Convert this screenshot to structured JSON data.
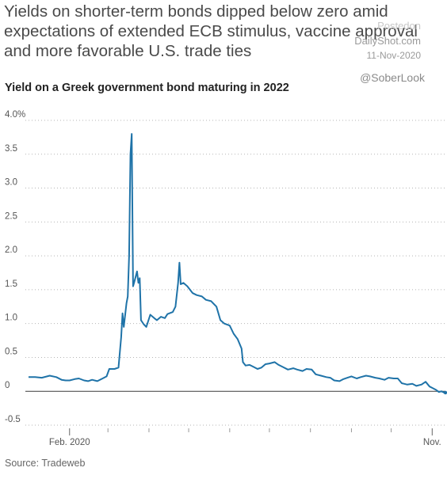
{
  "headline": "Yields on shorter-term bonds dipped below zero amid expectations of extended ECB stimulus, vaccine approval and more favorable U.S. trade ties",
  "watermark": {
    "source": "Postedon",
    "site": "DailyShot.com",
    "date": "11-Nov-2020",
    "handle": "@SoberLook"
  },
  "footer": {
    "source": "Source: Tradeweb"
  },
  "chart_data": {
    "type": "line",
    "title": "Yield on a Greek government bond maturing in 2022",
    "xlabel": "",
    "ylabel": "",
    "x_range": [
      "2020-01-01",
      "2020-11-11"
    ],
    "ylim": [
      -0.5,
      4.0
    ],
    "y_ticks": [
      {
        "value": 4.0,
        "label": "4.0%"
      },
      {
        "value": 3.5,
        "label": "3.5"
      },
      {
        "value": 3.0,
        "label": "3.0"
      },
      {
        "value": 2.5,
        "label": "2.5"
      },
      {
        "value": 2.0,
        "label": "2.0"
      },
      {
        "value": 1.5,
        "label": "1.5"
      },
      {
        "value": 1.0,
        "label": "1.0"
      },
      {
        "value": 0.5,
        "label": "0.5"
      },
      {
        "value": 0,
        "label": "0"
      },
      {
        "value": -0.5,
        "label": "-0.5"
      }
    ],
    "x_ticks": [
      {
        "date": "2020-02-01",
        "label": "Feb. 2020"
      },
      {
        "date": "2020-11-01",
        "label": "Nov."
      }
    ],
    "x_minor_ticks": [
      "2020-03-01",
      "2020-04-01",
      "2020-05-01",
      "2020-06-01",
      "2020-07-01",
      "2020-08-01",
      "2020-09-01",
      "2020-10-01"
    ],
    "grid": "horizontal-dotted",
    "line_color": "#1f73a8",
    "series": [
      {
        "name": "",
        "points": [
          [
            "2020-01-01",
            0.21
          ],
          [
            "2020-01-06",
            0.21
          ],
          [
            "2020-01-11",
            0.2
          ],
          [
            "2020-01-15",
            0.22
          ],
          [
            "2020-01-17",
            0.23
          ],
          [
            "2020-01-22",
            0.21
          ],
          [
            "2020-01-26",
            0.17
          ],
          [
            "2020-01-29",
            0.16
          ],
          [
            "2020-02-01",
            0.16
          ],
          [
            "2020-02-05",
            0.18
          ],
          [
            "2020-02-08",
            0.19
          ],
          [
            "2020-02-12",
            0.16
          ],
          [
            "2020-02-15",
            0.15
          ],
          [
            "2020-02-18",
            0.17
          ],
          [
            "2020-02-22",
            0.15
          ],
          [
            "2020-02-26",
            0.19
          ],
          [
            "2020-02-29",
            0.22
          ],
          [
            "2020-03-02",
            0.33
          ],
          [
            "2020-03-06",
            0.33
          ],
          [
            "2020-03-09",
            0.35
          ],
          [
            "2020-03-11",
            0.8
          ],
          [
            "2020-03-12",
            1.15
          ],
          [
            "2020-03-13",
            0.95
          ],
          [
            "2020-03-15",
            1.3
          ],
          [
            "2020-03-16",
            1.4
          ],
          [
            "2020-03-17",
            2.0
          ],
          [
            "2020-03-18",
            3.5
          ],
          [
            "2020-03-19",
            3.8
          ],
          [
            "2020-03-20",
            1.55
          ],
          [
            "2020-03-21",
            1.62
          ],
          [
            "2020-03-23",
            1.77
          ],
          [
            "2020-03-24",
            1.6
          ],
          [
            "2020-03-25",
            1.67
          ],
          [
            "2020-03-26",
            1.05
          ],
          [
            "2020-03-28",
            0.99
          ],
          [
            "2020-03-30",
            0.95
          ],
          [
            "2020-04-02",
            1.13
          ],
          [
            "2020-04-05",
            1.08
          ],
          [
            "2020-04-07",
            1.05
          ],
          [
            "2020-04-10",
            1.1
          ],
          [
            "2020-04-13",
            1.08
          ],
          [
            "2020-04-15",
            1.14
          ],
          [
            "2020-04-19",
            1.17
          ],
          [
            "2020-04-21",
            1.25
          ],
          [
            "2020-04-23",
            1.6
          ],
          [
            "2020-04-24",
            1.9
          ],
          [
            "2020-04-25",
            1.58
          ],
          [
            "2020-04-27",
            1.6
          ],
          [
            "2020-04-30",
            1.55
          ],
          [
            "2020-05-04",
            1.45
          ],
          [
            "2020-05-07",
            1.42
          ],
          [
            "2020-05-11",
            1.4
          ],
          [
            "2020-05-14",
            1.35
          ],
          [
            "2020-05-18",
            1.33
          ],
          [
            "2020-05-22",
            1.25
          ],
          [
            "2020-05-25",
            1.05
          ],
          [
            "2020-05-28",
            1.0
          ],
          [
            "2020-06-01",
            0.97
          ],
          [
            "2020-06-04",
            0.85
          ],
          [
            "2020-06-07",
            0.77
          ],
          [
            "2020-06-10",
            0.63
          ],
          [
            "2020-06-11",
            0.43
          ],
          [
            "2020-06-13",
            0.38
          ],
          [
            "2020-06-16",
            0.39
          ],
          [
            "2020-06-19",
            0.36
          ],
          [
            "2020-06-22",
            0.33
          ],
          [
            "2020-06-25",
            0.35
          ],
          [
            "2020-06-28",
            0.4
          ],
          [
            "2020-07-01",
            0.41
          ],
          [
            "2020-07-05",
            0.43
          ],
          [
            "2020-07-08",
            0.39
          ],
          [
            "2020-07-11",
            0.36
          ],
          [
            "2020-07-15",
            0.32
          ],
          [
            "2020-07-19",
            0.34
          ],
          [
            "2020-07-22",
            0.32
          ],
          [
            "2020-07-26",
            0.3
          ],
          [
            "2020-07-29",
            0.33
          ],
          [
            "2020-08-02",
            0.32
          ],
          [
            "2020-08-05",
            0.25
          ],
          [
            "2020-08-09",
            0.23
          ],
          [
            "2020-08-13",
            0.21
          ],
          [
            "2020-08-16",
            0.2
          ],
          [
            "2020-08-19",
            0.16
          ],
          [
            "2020-08-23",
            0.15
          ],
          [
            "2020-08-26",
            0.18
          ],
          [
            "2020-08-29",
            0.2
          ],
          [
            "2020-09-01",
            0.22
          ],
          [
            "2020-09-05",
            0.19
          ],
          [
            "2020-09-08",
            0.21
          ],
          [
            "2020-09-12",
            0.23
          ],
          [
            "2020-09-15",
            0.22
          ],
          [
            "2020-09-19",
            0.2
          ],
          [
            "2020-09-22",
            0.19
          ],
          [
            "2020-09-26",
            0.17
          ],
          [
            "2020-09-29",
            0.2
          ],
          [
            "2020-10-03",
            0.19
          ],
          [
            "2020-10-06",
            0.19
          ],
          [
            "2020-10-09",
            0.12
          ],
          [
            "2020-10-13",
            0.1
          ],
          [
            "2020-10-17",
            0.11
          ],
          [
            "2020-10-20",
            0.08
          ],
          [
            "2020-10-24",
            0.1
          ],
          [
            "2020-10-27",
            0.14
          ],
          [
            "2020-10-30",
            0.07
          ],
          [
            "2020-11-01",
            0.05
          ],
          [
            "2020-11-04",
            0.02
          ],
          [
            "2020-11-06",
            -0.01
          ],
          [
            "2020-11-08",
            0.0
          ],
          [
            "2020-11-10",
            -0.02
          ],
          [
            "2020-11-11",
            -0.02
          ]
        ]
      }
    ]
  }
}
